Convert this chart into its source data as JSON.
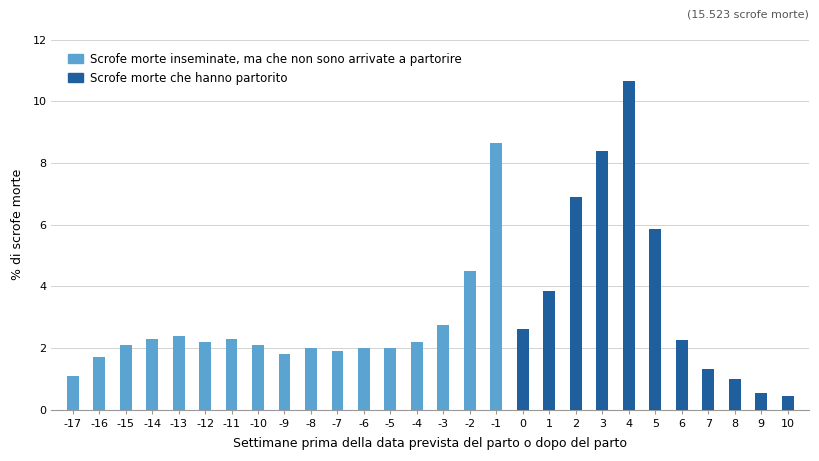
{
  "weeks": [
    -17,
    -16,
    -15,
    -14,
    -13,
    -12,
    -11,
    -10,
    -9,
    -8,
    -7,
    -6,
    -5,
    -4,
    -3,
    -2,
    -1,
    0,
    1,
    2,
    3,
    4,
    5,
    6,
    7,
    8,
    9,
    10
  ],
  "values_light": [
    1.1,
    1.7,
    2.1,
    2.3,
    2.4,
    2.2,
    2.3,
    2.1,
    1.8,
    2.0,
    1.9,
    2.0,
    2.0,
    2.2,
    2.75,
    4.5,
    8.65,
    0.0,
    0.0,
    0.0,
    0.0,
    0.0,
    0.0,
    0.0,
    0.0,
    0.0,
    0.0,
    0.0
  ],
  "values_dark": [
    0.0,
    0.0,
    0.0,
    0.0,
    0.0,
    0.0,
    0.0,
    0.0,
    0.0,
    0.0,
    0.0,
    0.0,
    0.0,
    0.0,
    0.0,
    0.0,
    0.0,
    2.6,
    3.85,
    6.9,
    8.4,
    10.65,
    5.85,
    2.25,
    1.3,
    1.0,
    0.55,
    0.45
  ],
  "color_light": "#5ba3d0",
  "color_dark": "#1f5f9e",
  "legend_label_light": "Scrofe morte inseminate, ma che non sono arrivate a partorire",
  "legend_label_dark": "Scrofe morte che hanno partorito",
  "xlabel": "Settimane prima della data prevista del parto o dopo del parto",
  "ylabel": "% di scrofe morte",
  "ylim": [
    0,
    12
  ],
  "yticks": [
    0,
    2,
    4,
    6,
    8,
    10,
    12
  ],
  "annotation": "(15.523 scrofe morte)",
  "background_color": "#ffffff",
  "grid_color": "#cccccc"
}
